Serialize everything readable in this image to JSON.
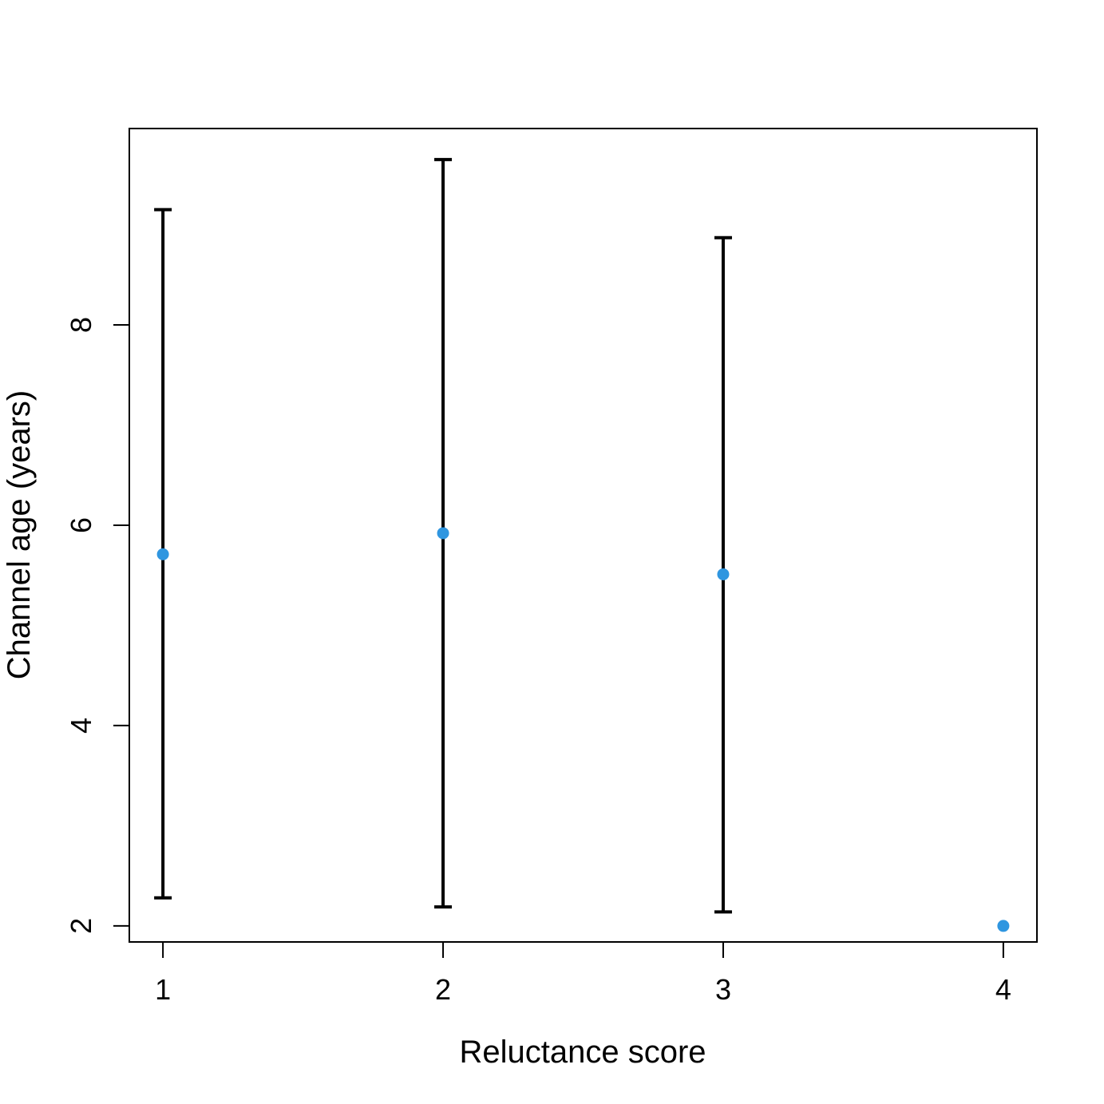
{
  "chart_data": {
    "type": "scatter",
    "title": "",
    "xlabel": "Reluctance score",
    "ylabel": "Channel age (years)",
    "xlim": [
      0.88,
      4.12
    ],
    "ylim": [
      1.84,
      9.96
    ],
    "x_ticks": [
      1,
      2,
      3,
      4
    ],
    "x_tick_labels": [
      "1",
      "2",
      "3",
      "4"
    ],
    "y_ticks": [
      2,
      4,
      6,
      8
    ],
    "y_tick_labels": [
      "2",
      "4",
      "6",
      "8"
    ],
    "grid": false,
    "legend": null,
    "point_color": "#2f96e0",
    "series": [
      {
        "name": "Channel age",
        "points": [
          {
            "x": 1,
            "y": 5.71,
            "lower": 2.28,
            "upper": 9.15
          },
          {
            "x": 2,
            "y": 5.92,
            "lower": 2.19,
            "upper": 9.65
          },
          {
            "x": 3,
            "y": 5.51,
            "lower": 2.14,
            "upper": 8.87
          },
          {
            "x": 4,
            "y": 2.0,
            "lower": null,
            "upper": null
          }
        ]
      }
    ]
  }
}
